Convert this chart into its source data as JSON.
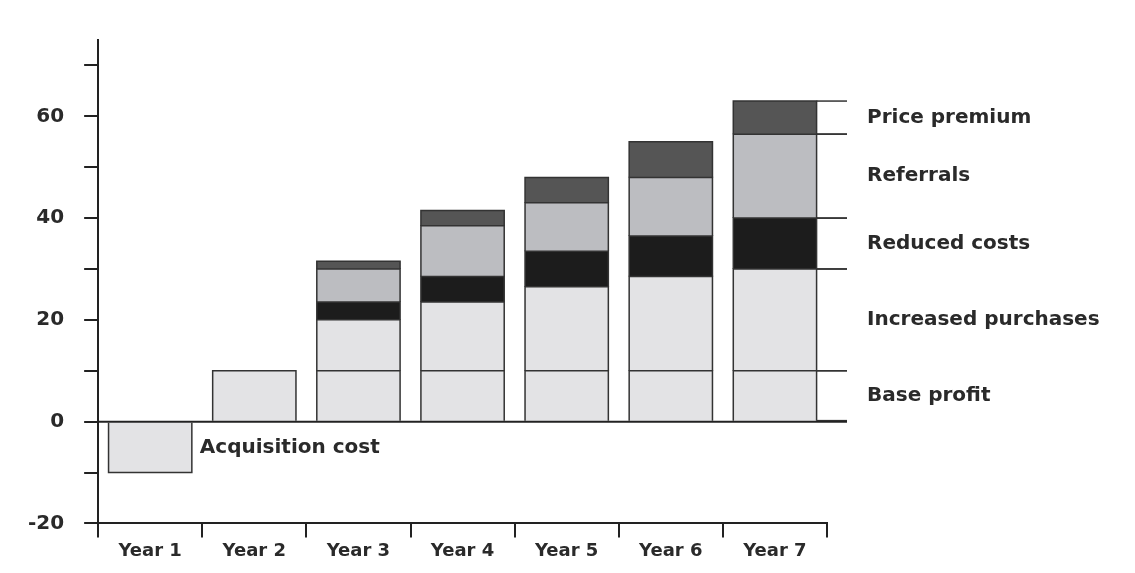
{
  "chart_data": {
    "type": "bar",
    "stacked": true,
    "grid": false,
    "legend": "right",
    "categories": [
      "Year 1",
      "Year 2",
      "Year 3",
      "Year 4",
      "Year 5",
      "Year 6",
      "Year 7"
    ],
    "ylim": [
      -20,
      75
    ],
    "yticks": [
      -20,
      {
        "value": -10,
        "label": null
      },
      0,
      {
        "value": 10,
        "label": null
      },
      20,
      {
        "value": 30,
        "label": null
      },
      40,
      {
        "value": 50,
        "label": null
      },
      60,
      {
        "value": 70,
        "label": null
      }
    ],
    "ref_lines": [
      {
        "axis": "y",
        "value": 0,
        "color": "#222222"
      }
    ],
    "series": [
      {
        "name": "Acquisition cost",
        "color": "#e3e3e5",
        "values": [
          -10,
          null,
          null,
          null,
          null,
          null,
          null
        ]
      },
      {
        "name": "Base profit",
        "color": "#e3e3e5",
        "values": [
          null,
          10,
          10,
          10,
          10,
          10,
          10
        ]
      },
      {
        "name": "Increased purchases",
        "color": "#e3e3e5",
        "values": [
          null,
          null,
          10,
          13.5,
          16.5,
          18.5,
          20
        ]
      },
      {
        "name": "Reduced costs",
        "color": "#1c1c1c",
        "values": [
          null,
          null,
          3.5,
          5,
          7,
          8,
          10
        ]
      },
      {
        "name": "Referrals",
        "color": "#bcbdc1",
        "values": [
          null,
          null,
          6.5,
          10,
          9.5,
          11.5,
          16.5
        ]
      },
      {
        "name": "Price premium",
        "color": "#555555",
        "values": [
          null,
          null,
          1.5,
          3,
          5,
          7,
          6.5
        ]
      }
    ]
  }
}
